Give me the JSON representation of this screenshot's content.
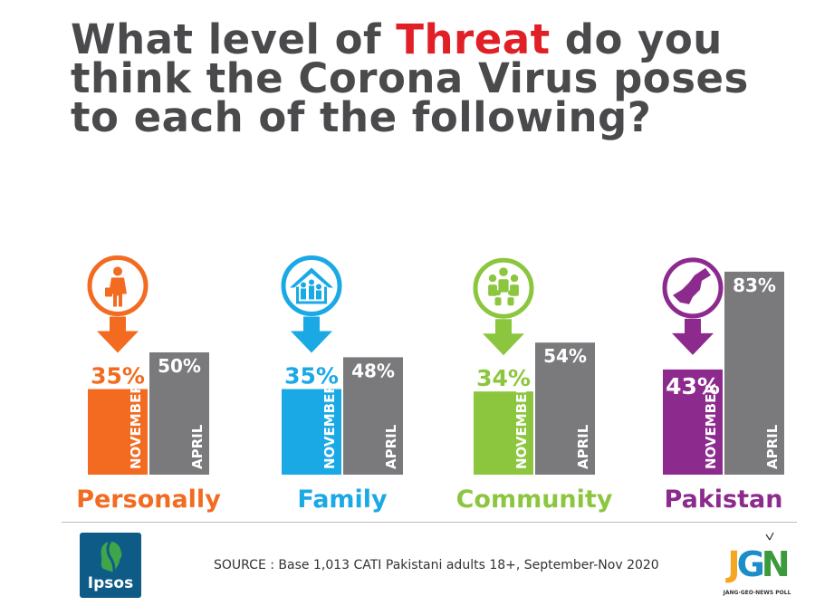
{
  "title": {
    "part1": "What level of ",
    "highlight": "Threat",
    "part2": " do you think the Corona Virus poses to each of the following?"
  },
  "chart_data": {
    "type": "bar",
    "title": "What level of Threat do you think the Corona Virus poses to each of the following?",
    "ylim": [
      0,
      100
    ],
    "categories": [
      "Personally",
      "Family",
      "Community",
      "Pakistan"
    ],
    "series": [
      {
        "name": "NOVEMBER",
        "values": [
          35,
          35,
          34,
          43
        ]
      },
      {
        "name": "APRIL",
        "values": [
          50,
          48,
          54,
          83
        ]
      }
    ],
    "value_labels": {
      "NOVEMBER": [
        "35%",
        "35%",
        "34%",
        "43%"
      ],
      "APRIL": [
        "50%",
        "48%",
        "54%",
        "83%"
      ]
    },
    "category_colors": [
      "#f26b21",
      "#1ba9e6",
      "#8cc63f",
      "#8d2a8e"
    ],
    "april_color": "#7a7a7c",
    "icons": [
      "person-icon",
      "family-home-icon",
      "community-icon",
      "pakistan-map-icon"
    ]
  },
  "footer": {
    "source": "SOURCE : Base 1,013 CATI Pakistani adults 18+, September-Nov 2020",
    "ipsos_label": "Ipsos",
    "jgn_letters": "JGN",
    "jgn_poll": "JANG·GEO·NEWS POLL"
  }
}
